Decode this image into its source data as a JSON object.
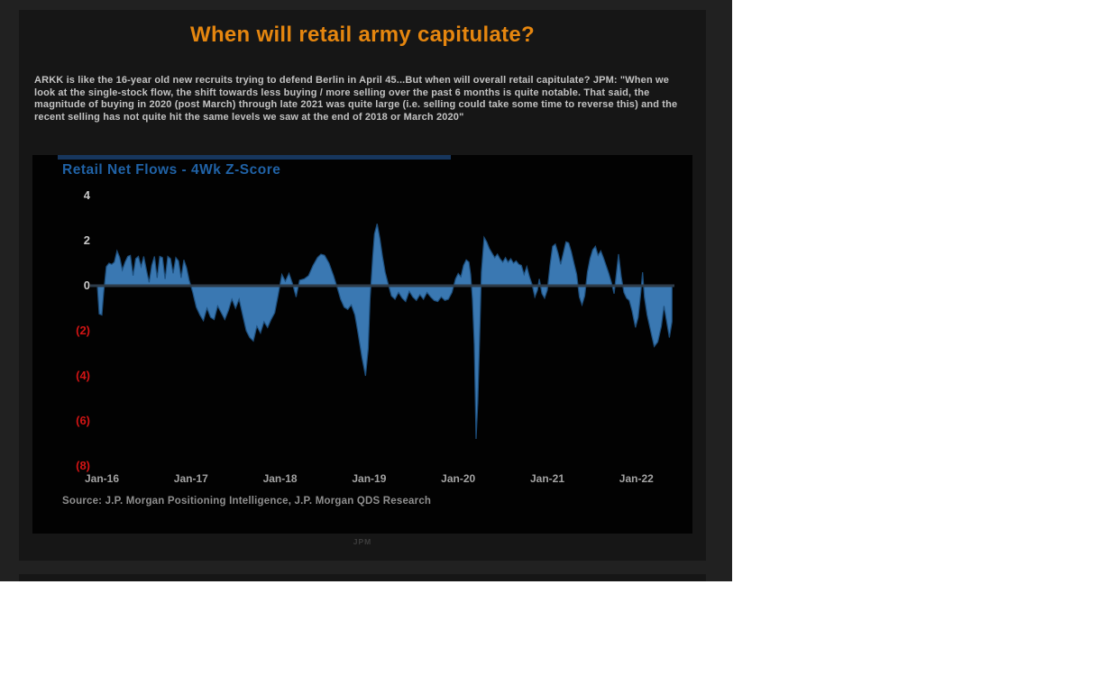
{
  "article": {
    "title": "When will retail army capitulate?",
    "body": "ARKK is like the 16-year old new recruits trying to defend Berlin in April 45...But when will overall retail capitulate? JPM: \"When we look at the single-stock flow, the shift towards less buying / more selling over the past 6 months is quite notable. That said, the magnitude of buying in 2020 (post March) through late 2021 was quite large (i.e. selling could take some time to reverse this) and the recent selling has not quite hit the same levels we saw at the end of 2018 or March 2020\""
  },
  "watermark": "JPM",
  "colors": {
    "title_orange": "#e5860f",
    "chart_title_blue": "#2062a6",
    "area_fill_blue": "#3a78b2",
    "area_edge_blue": "#1d4e7c",
    "negative_label_red": "#d21414",
    "positive_label_gray": "#c8c8c8",
    "zero_line": "#2e3c4a",
    "navy_strip": "#17365d"
  },
  "chart_data": {
    "type": "area",
    "title": "Retail Net Flows - 4Wk Z-Score",
    "source": "Source: J.P. Morgan Positioning Intelligence, J.P. Morgan QDS Research",
    "xlabel": "",
    "ylabel": "",
    "grid": false,
    "legend": false,
    "ylim": [
      -8,
      4
    ],
    "x_range_years": [
      2015.95,
      2022.4
    ],
    "y_ticks": [
      {
        "label": "4",
        "value": 4
      },
      {
        "label": "2",
        "value": 2
      },
      {
        "label": "0",
        "value": 0
      },
      {
        "label": "(2)",
        "value": -2
      },
      {
        "label": "(4)",
        "value": -4
      },
      {
        "label": "(6)",
        "value": -6
      },
      {
        "label": "(8)",
        "value": -8
      }
    ],
    "x_ticks": [
      {
        "label": "Jan-16",
        "year": 2016
      },
      {
        "label": "Jan-17",
        "year": 2017
      },
      {
        "label": "Jan-18",
        "year": 2018
      },
      {
        "label": "Jan-19",
        "year": 2019
      },
      {
        "label": "Jan-20",
        "year": 2020
      },
      {
        "label": "Jan-21",
        "year": 2021
      },
      {
        "label": "Jan-22",
        "year": 2022
      }
    ],
    "series": [
      {
        "name": "Retail net flows 4-week z-score",
        "points": [
          [
            2015.95,
            -0.1
          ],
          [
            2015.97,
            -1.25
          ],
          [
            2016.0,
            -1.3
          ],
          [
            2016.02,
            -0.3
          ],
          [
            2016.05,
            0.85
          ],
          [
            2016.08,
            1.0
          ],
          [
            2016.11,
            0.95
          ],
          [
            2016.14,
            1.05
          ],
          [
            2016.17,
            1.55
          ],
          [
            2016.2,
            1.25
          ],
          [
            2016.23,
            0.7
          ],
          [
            2016.26,
            1.05
          ],
          [
            2016.29,
            1.3
          ],
          [
            2016.32,
            1.35
          ],
          [
            2016.35,
            0.45
          ],
          [
            2016.38,
            1.2
          ],
          [
            2016.41,
            1.3
          ],
          [
            2016.44,
            0.85
          ],
          [
            2016.47,
            1.3
          ],
          [
            2016.5,
            0.7
          ],
          [
            2016.53,
            0.15
          ],
          [
            2016.56,
            0.9
          ],
          [
            2016.59,
            1.3
          ],
          [
            2016.62,
            0.35
          ],
          [
            2016.65,
            1.3
          ],
          [
            2016.68,
            1.25
          ],
          [
            2016.71,
            0.3
          ],
          [
            2016.74,
            1.3
          ],
          [
            2016.77,
            1.2
          ],
          [
            2016.8,
            0.55
          ],
          [
            2016.83,
            1.25
          ],
          [
            2016.86,
            1.1
          ],
          [
            2016.89,
            0.35
          ],
          [
            2016.92,
            1.15
          ],
          [
            2016.95,
            0.8
          ],
          [
            2016.98,
            0.25
          ],
          [
            2017.02,
            -0.3
          ],
          [
            2017.06,
            -0.95
          ],
          [
            2017.1,
            -1.3
          ],
          [
            2017.14,
            -1.55
          ],
          [
            2017.18,
            -1.0
          ],
          [
            2017.22,
            -1.4
          ],
          [
            2017.26,
            -1.5
          ],
          [
            2017.3,
            -0.9
          ],
          [
            2017.34,
            -1.2
          ],
          [
            2017.38,
            -1.5
          ],
          [
            2017.42,
            -1.1
          ],
          [
            2017.46,
            -0.6
          ],
          [
            2017.5,
            -1.0
          ],
          [
            2017.54,
            -0.6
          ],
          [
            2017.58,
            -1.3
          ],
          [
            2017.62,
            -2.0
          ],
          [
            2017.66,
            -2.3
          ],
          [
            2017.7,
            -2.45
          ],
          [
            2017.74,
            -1.8
          ],
          [
            2017.78,
            -2.1
          ],
          [
            2017.82,
            -1.6
          ],
          [
            2017.86,
            -1.85
          ],
          [
            2017.9,
            -1.5
          ],
          [
            2017.94,
            -1.2
          ],
          [
            2017.98,
            -0.4
          ],
          [
            2018.02,
            0.5
          ],
          [
            2018.06,
            0.2
          ],
          [
            2018.1,
            0.55
          ],
          [
            2018.14,
            0.1
          ],
          [
            2018.18,
            -0.5
          ],
          [
            2018.22,
            0.25
          ],
          [
            2018.27,
            0.3
          ],
          [
            2018.32,
            0.45
          ],
          [
            2018.37,
            0.9
          ],
          [
            2018.42,
            1.25
          ],
          [
            2018.46,
            1.4
          ],
          [
            2018.5,
            1.35
          ],
          [
            2018.55,
            1.0
          ],
          [
            2018.6,
            0.45
          ],
          [
            2018.64,
            -0.05
          ],
          [
            2018.68,
            -0.6
          ],
          [
            2018.72,
            -0.95
          ],
          [
            2018.76,
            -1.05
          ],
          [
            2018.8,
            -0.85
          ],
          [
            2018.84,
            -1.3
          ],
          [
            2018.88,
            -2.2
          ],
          [
            2018.92,
            -3.2
          ],
          [
            2018.96,
            -4.0
          ],
          [
            2018.99,
            -2.8
          ],
          [
            2019.01,
            -0.6
          ],
          [
            2019.04,
            1.3
          ],
          [
            2019.06,
            2.3
          ],
          [
            2019.09,
            2.75
          ],
          [
            2019.12,
            2.1
          ],
          [
            2019.15,
            1.3
          ],
          [
            2019.18,
            0.6
          ],
          [
            2019.21,
            0.15
          ],
          [
            2019.25,
            -0.45
          ],
          [
            2019.29,
            -0.6
          ],
          [
            2019.33,
            -0.3
          ],
          [
            2019.37,
            -0.55
          ],
          [
            2019.41,
            -0.7
          ],
          [
            2019.45,
            -0.25
          ],
          [
            2019.49,
            -0.5
          ],
          [
            2019.53,
            -0.65
          ],
          [
            2019.57,
            -0.4
          ],
          [
            2019.61,
            -0.6
          ],
          [
            2019.65,
            -0.3
          ],
          [
            2019.69,
            -0.5
          ],
          [
            2019.73,
            -0.65
          ],
          [
            2019.77,
            -0.7
          ],
          [
            2019.81,
            -0.5
          ],
          [
            2019.85,
            -0.65
          ],
          [
            2019.89,
            -0.6
          ],
          [
            2019.93,
            -0.3
          ],
          [
            2019.97,
            0.3
          ],
          [
            2020.0,
            0.55
          ],
          [
            2020.03,
            0.4
          ],
          [
            2020.06,
            0.9
          ],
          [
            2020.09,
            1.15
          ],
          [
            2020.12,
            1.05
          ],
          [
            2020.14,
            0.5
          ],
          [
            2020.16,
            -0.6
          ],
          [
            2020.18,
            -2.6
          ],
          [
            2020.2,
            -6.8
          ],
          [
            2020.22,
            -5.2
          ],
          [
            2020.24,
            -2.4
          ],
          [
            2020.26,
            0.6
          ],
          [
            2020.29,
            2.15
          ],
          [
            2020.32,
            1.95
          ],
          [
            2020.35,
            1.65
          ],
          [
            2020.38,
            1.45
          ],
          [
            2020.41,
            1.25
          ],
          [
            2020.44,
            1.4
          ],
          [
            2020.47,
            1.2
          ],
          [
            2020.5,
            1.05
          ],
          [
            2020.53,
            1.25
          ],
          [
            2020.56,
            1.05
          ],
          [
            2020.59,
            1.2
          ],
          [
            2020.62,
            1.0
          ],
          [
            2020.65,
            1.1
          ],
          [
            2020.68,
            0.95
          ],
          [
            2020.71,
            0.9
          ],
          [
            2020.74,
            0.5
          ],
          [
            2020.77,
            0.85
          ],
          [
            2020.8,
            0.4
          ],
          [
            2020.83,
            0.05
          ],
          [
            2020.86,
            -0.5
          ],
          [
            2020.89,
            -0.2
          ],
          [
            2020.91,
            0.3
          ],
          [
            2020.94,
            -0.35
          ],
          [
            2020.97,
            -0.55
          ],
          [
            2021.0,
            -0.2
          ],
          [
            2021.03,
            0.9
          ],
          [
            2021.06,
            1.75
          ],
          [
            2021.09,
            1.85
          ],
          [
            2021.12,
            1.45
          ],
          [
            2021.15,
            0.95
          ],
          [
            2021.18,
            1.45
          ],
          [
            2021.21,
            1.95
          ],
          [
            2021.24,
            1.9
          ],
          [
            2021.27,
            1.5
          ],
          [
            2021.3,
            1.0
          ],
          [
            2021.33,
            0.5
          ],
          [
            2021.36,
            -0.5
          ],
          [
            2021.39,
            -0.85
          ],
          [
            2021.42,
            -0.45
          ],
          [
            2021.45,
            0.6
          ],
          [
            2021.48,
            1.2
          ],
          [
            2021.51,
            1.6
          ],
          [
            2021.54,
            1.75
          ],
          [
            2021.57,
            1.35
          ],
          [
            2021.6,
            1.55
          ],
          [
            2021.63,
            1.25
          ],
          [
            2021.66,
            0.9
          ],
          [
            2021.69,
            0.55
          ],
          [
            2021.72,
            0.15
          ],
          [
            2021.75,
            -0.35
          ],
          [
            2021.78,
            0.7
          ],
          [
            2021.8,
            1.4
          ],
          [
            2021.83,
            0.4
          ],
          [
            2021.86,
            -0.3
          ],
          [
            2021.89,
            -0.55
          ],
          [
            2021.92,
            -0.65
          ],
          [
            2021.95,
            -1.1
          ],
          [
            2021.99,
            -1.85
          ],
          [
            2022.02,
            -1.4
          ],
          [
            2022.05,
            -0.3
          ],
          [
            2022.07,
            0.6
          ],
          [
            2022.09,
            -0.5
          ],
          [
            2022.12,
            -1.3
          ],
          [
            2022.16,
            -2.0
          ],
          [
            2022.2,
            -2.7
          ],
          [
            2022.24,
            -2.5
          ],
          [
            2022.28,
            -1.8
          ],
          [
            2022.31,
            -0.9
          ],
          [
            2022.34,
            -1.6
          ],
          [
            2022.37,
            -2.3
          ],
          [
            2022.4,
            -1.6
          ]
        ]
      }
    ]
  }
}
